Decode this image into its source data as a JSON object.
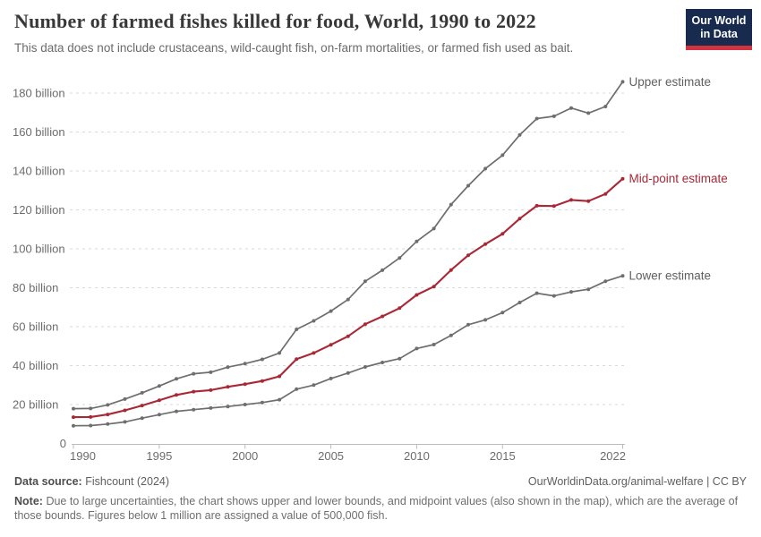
{
  "header": {
    "title": "Number of farmed fishes killed for food, World, 1990 to 2022",
    "subtitle": "This data does not include crustaceans, wild-caught fish, on-farm mortalities, or farmed fish used as bait.",
    "logo": {
      "line1": "Our World",
      "line2": "in Data"
    }
  },
  "colors": {
    "midpoint_red": "#a82836",
    "estimate_gray": "#6e6e6e",
    "gray_label": "#606060",
    "logo_navy": "#182b4e",
    "logo_red": "#d0343f",
    "gridline": "#dadada",
    "axis": "#bcbcbc",
    "tick_text": "#6d6d6d"
  },
  "chart_data": {
    "type": "line",
    "title": "Number of farmed fishes killed for food, World, 1990 to 2022",
    "xlabel": "",
    "ylabel": "",
    "unit": "billion fish",
    "xlim": [
      1990,
      2022
    ],
    "ylim": [
      0,
      190
    ],
    "grid": true,
    "legend_position": "end-of-line",
    "x": [
      1990,
      1991,
      1992,
      1993,
      1994,
      1995,
      1996,
      1997,
      1998,
      1999,
      2000,
      2001,
      2002,
      2003,
      2004,
      2005,
      2006,
      2007,
      2008,
      2009,
      2010,
      2011,
      2012,
      2013,
      2014,
      2015,
      2016,
      2017,
      2018,
      2019,
      2020,
      2021,
      2022
    ],
    "series": [
      {
        "id": "upper",
        "name": "Upper estimate",
        "color": "#6e6e6e",
        "label_color": "#606060",
        "width": 1.7,
        "values": [
          17.9,
          18.0,
          19.8,
          22.8,
          26.0,
          29.5,
          33.2,
          35.8,
          36.6,
          39.2,
          41.0,
          43.2,
          46.5,
          58.6,
          63.0,
          68.0,
          74.0,
          83.3,
          89.0,
          95.3,
          103.8,
          110.4,
          122.7,
          132.4,
          141.2,
          148.1,
          158.5,
          166.9,
          168.1,
          172.3,
          169.7,
          173.1,
          185.8
        ]
      },
      {
        "id": "midpoint",
        "name": "Mid-point estimate",
        "color": "#a82836",
        "label_color": "#a82836",
        "width": 2.1,
        "values": [
          13.5,
          13.6,
          14.9,
          17.0,
          19.5,
          22.2,
          24.9,
          26.6,
          27.4,
          29.1,
          30.5,
          32.1,
          34.5,
          43.3,
          46.5,
          50.7,
          55.1,
          61.3,
          65.3,
          69.5,
          76.3,
          80.6,
          89.1,
          96.7,
          102.4,
          107.7,
          115.5,
          122.1,
          122.0,
          125.1,
          124.5,
          128.2,
          136.0
        ]
      },
      {
        "id": "lower",
        "name": "Lower estimate",
        "color": "#6e6e6e",
        "label_color": "#606060",
        "width": 1.7,
        "values": [
          9.1,
          9.2,
          10.0,
          11.1,
          13.0,
          14.8,
          16.5,
          17.4,
          18.2,
          19.0,
          20.0,
          21.0,
          22.5,
          27.9,
          30.0,
          33.4,
          36.2,
          39.3,
          41.6,
          43.6,
          48.8,
          50.8,
          55.5,
          61.0,
          63.5,
          67.2,
          72.4,
          77.2,
          75.8,
          77.9,
          79.2,
          83.3,
          86.1
        ]
      }
    ],
    "y_ticks": [
      {
        "value": 20,
        "label": "20 billion"
      },
      {
        "value": 40,
        "label": "40 billion"
      },
      {
        "value": 60,
        "label": "60 billion"
      },
      {
        "value": 80,
        "label": "80 billion"
      },
      {
        "value": 100,
        "label": "100 billion"
      },
      {
        "value": 120,
        "label": "120 billion"
      },
      {
        "value": 140,
        "label": "140 billion"
      },
      {
        "value": 160,
        "label": "160 billion"
      },
      {
        "value": 180,
        "label": "180 billion"
      }
    ],
    "y_axis_zero_label": "0",
    "x_ticks": [
      1990,
      1995,
      2000,
      2005,
      2010,
      2015,
      2022
    ]
  },
  "footer": {
    "source_label": "Data source:",
    "source_value": "Fishcount (2024)",
    "attribution": "OurWorldinData.org/animal-welfare | CC BY",
    "note_label": "Note:",
    "note_text": "Due to large uncertainties, the chart shows upper and lower bounds, and midpoint values (also shown in the map), which are the average of those bounds. Figures below 1 million are assigned a value of 500,000 fish."
  }
}
